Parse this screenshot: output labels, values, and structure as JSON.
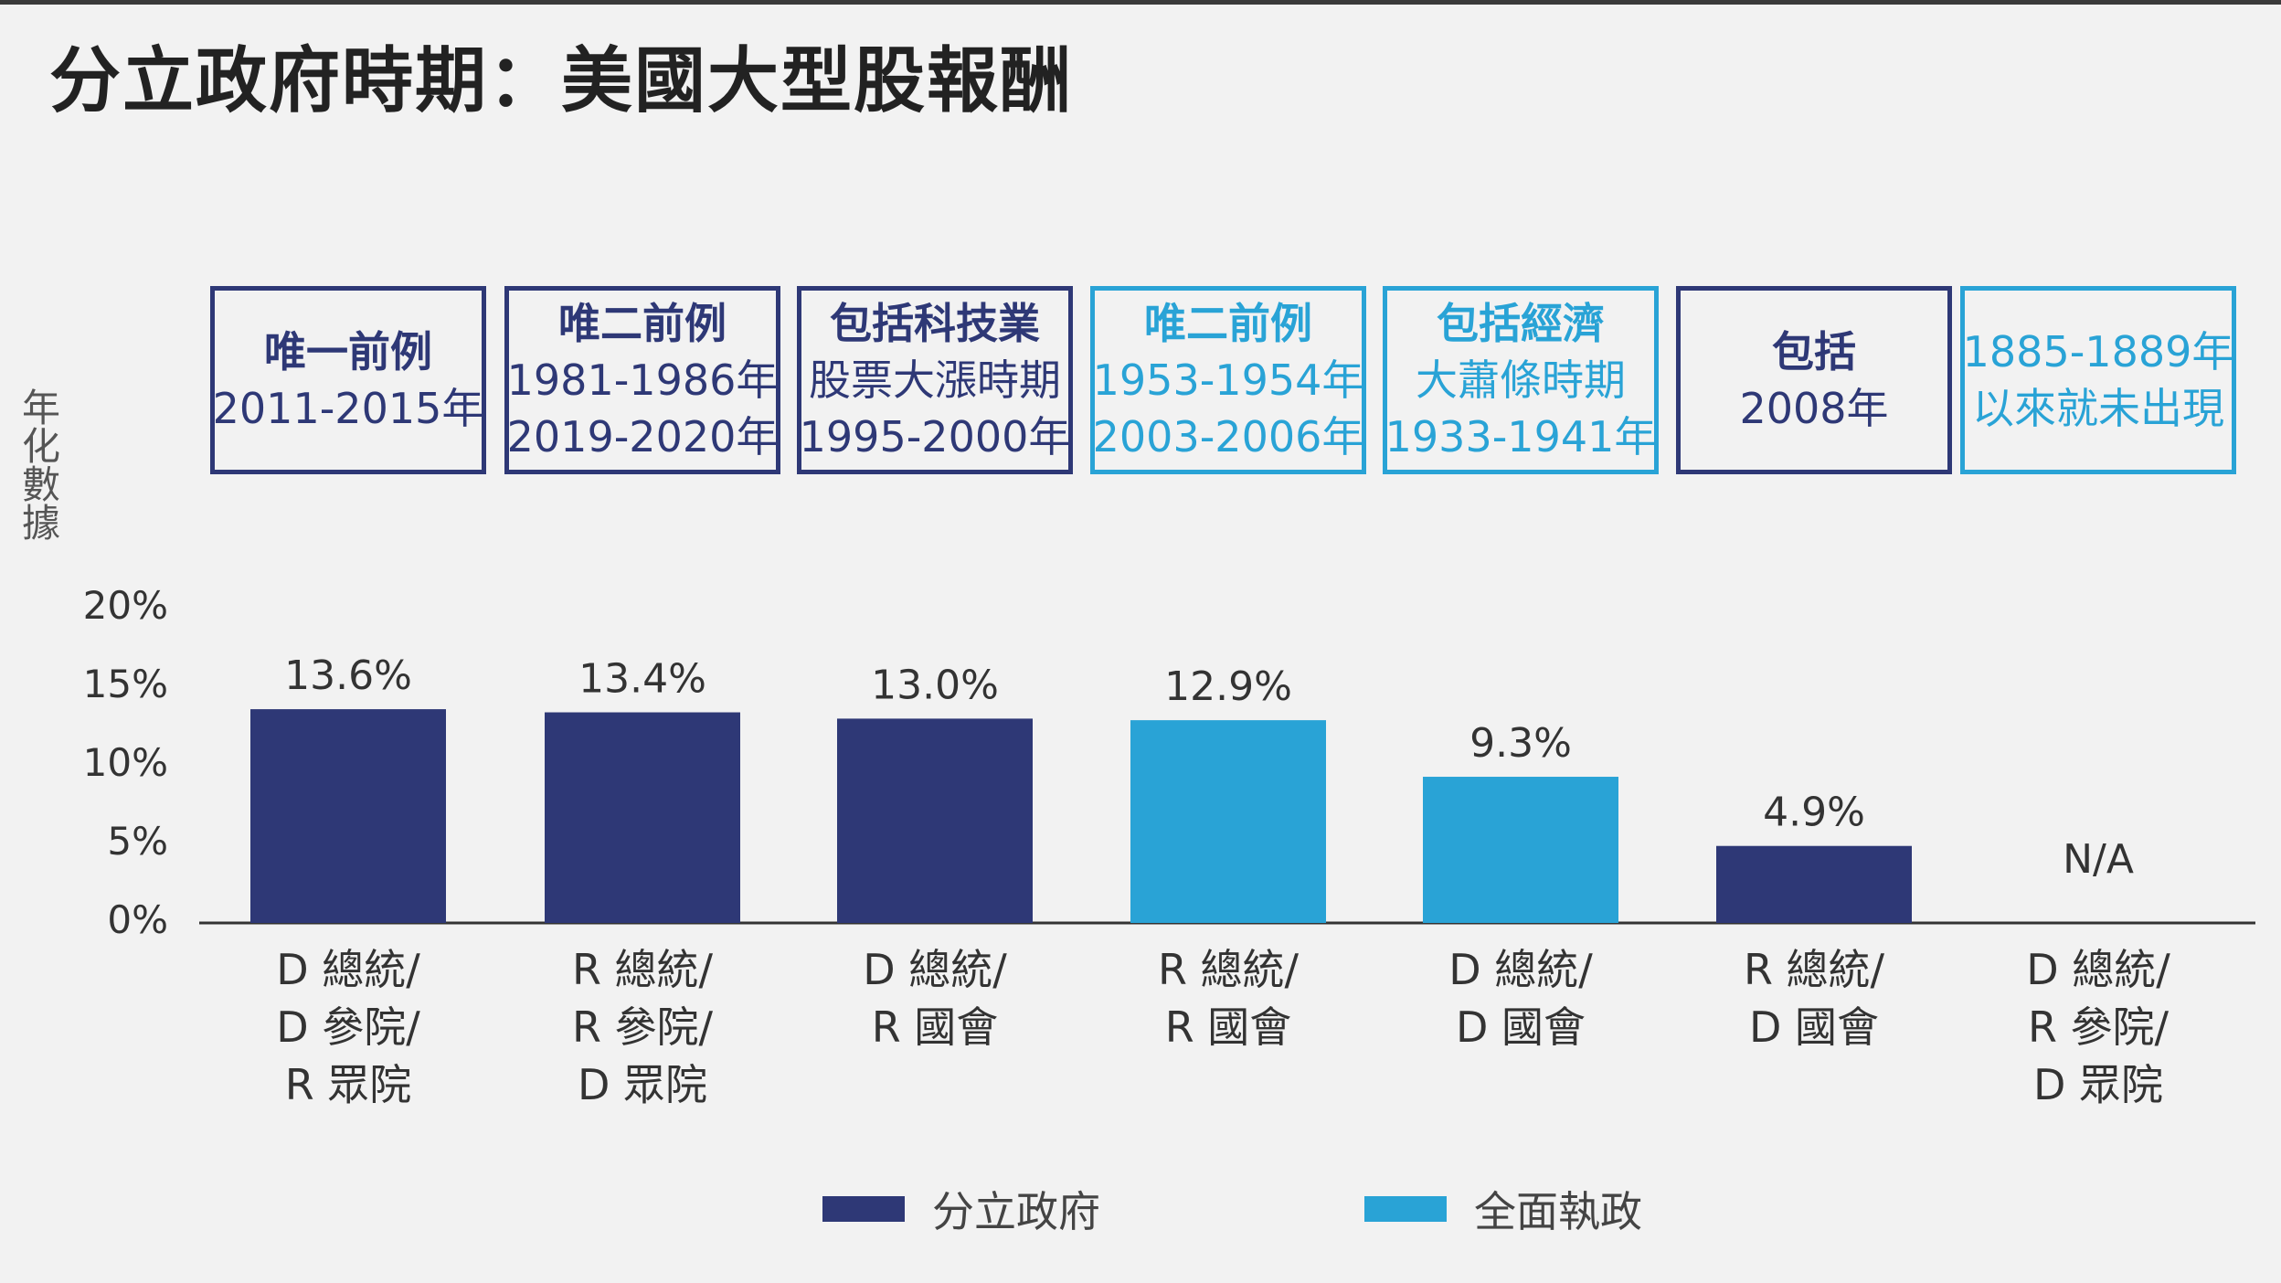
{
  "title": "分立政府時期：美國大型股報酬",
  "colors": {
    "divided": "#2e3876",
    "unified": "#29a3d6",
    "axis": "#333333"
  },
  "chart_data": {
    "type": "bar",
    "title": "分立政府時期：美國大型股報酬",
    "ylabel": "年化數據",
    "ylim": [
      0,
      20
    ],
    "yticks": [
      "0%",
      "5%",
      "10%",
      "15%",
      "20%"
    ],
    "grid": false,
    "legend_position": "bottom",
    "legend": [
      {
        "label": "分立政府",
        "color": "#2e3876"
      },
      {
        "label": "全面執政",
        "color": "#29a3d6"
      }
    ],
    "categories": [
      [
        "D 總統/",
        "D 參院/",
        "R 眾院"
      ],
      [
        "R 總統/",
        "R 參院/",
        "D 眾院"
      ],
      [
        "D 總統/",
        "R 國會"
      ],
      [
        "R 總統/",
        "R 國會"
      ],
      [
        "D 總統/",
        "D 國會"
      ],
      [
        "R 總統/",
        "D 國會"
      ],
      [
        "D 總統/",
        "R 參院/",
        "D 眾院"
      ]
    ],
    "values": [
      13.6,
      13.4,
      13.0,
      12.9,
      9.3,
      4.9,
      null
    ],
    "value_labels": [
      "13.6%",
      "13.4%",
      "13.0%",
      "12.9%",
      "9.3%",
      "4.9%",
      "N/A"
    ],
    "series_type": [
      "divided",
      "divided",
      "divided",
      "unified",
      "unified",
      "divided",
      "unified"
    ],
    "annotations": [
      {
        "lines": [
          "唯一前例",
          "2011-2015年"
        ],
        "style": "divided"
      },
      {
        "lines": [
          "唯二前例",
          "1981-1986年",
          "2019-2020年"
        ],
        "style": "divided"
      },
      {
        "lines": [
          "包括科技業",
          "股票大漲時期",
          "1995-2000年"
        ],
        "style": "divided"
      },
      {
        "lines": [
          "唯二前例",
          "1953-1954年",
          "2003-2006年"
        ],
        "style": "unified"
      },
      {
        "lines": [
          "包括經濟",
          "大蕭條時期",
          "1933-1941年"
        ],
        "style": "unified"
      },
      {
        "lines": [
          "包括",
          "2008年"
        ],
        "style": "divided"
      },
      {
        "lines": [
          "1885-1889年",
          "以來就未出現"
        ],
        "style": "unified"
      }
    ]
  }
}
